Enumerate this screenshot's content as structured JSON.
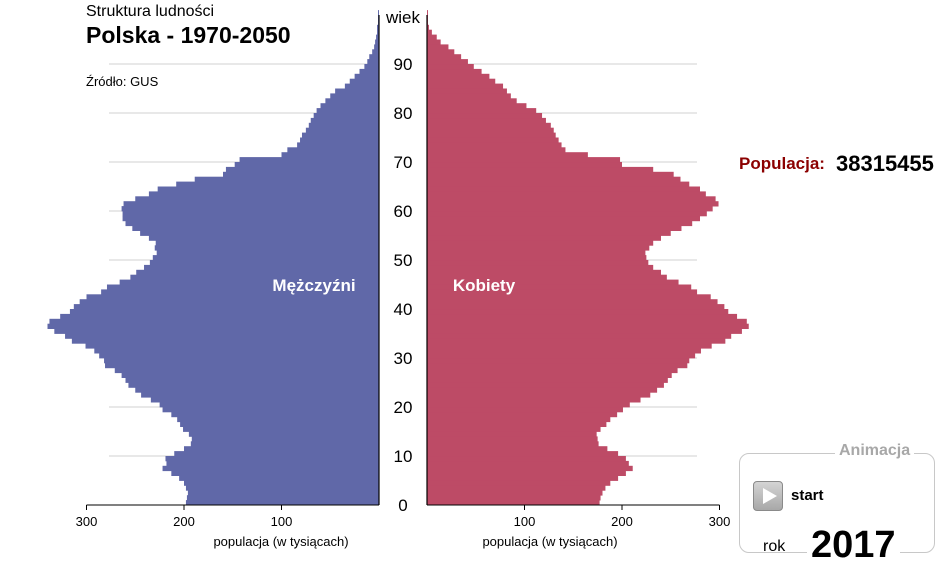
{
  "header": {
    "subtitle": "Struktura ludności",
    "title": "Polska - 1970-2050",
    "source": "Źródło: GUS"
  },
  "population": {
    "label": "Populacja:",
    "value": "38315455"
  },
  "animation": {
    "legend": "Animacja",
    "start_label": "start",
    "year_label": "rok",
    "year": "2017"
  },
  "colors": {
    "men": "#6068a8",
    "women": "#bd4b66",
    "grid": "#d0d0d0",
    "accent_dark_red": "#8b0000"
  },
  "chart_data": {
    "type": "bar",
    "orientation": "population-pyramid",
    "age_axis_label": "wiek",
    "age_ticks": [
      0,
      10,
      20,
      30,
      40,
      50,
      60,
      70,
      80,
      90
    ],
    "age_range": [
      0,
      100
    ],
    "x_range": [
      0,
      300
    ],
    "x_ticks_left": [
      300,
      200,
      100
    ],
    "x_ticks_right": [
      100,
      200,
      300
    ],
    "xlabel_left": "populacja (w tysiącach)",
    "xlabel_right": "populacja (w tysiącach)",
    "series": [
      {
        "name": "Mężczyźni",
        "values": [
          198,
          197,
          196,
          198,
          200,
          205,
          213,
          222,
          218,
          219,
          210,
          200,
          193,
          192,
          195,
          201,
          204,
          207,
          213,
          222,
          225,
          234,
          244,
          250,
          257,
          260,
          264,
          271,
          281,
          282,
          287,
          292,
          301,
          315,
          322,
          333,
          340,
          338,
          327,
          317,
          313,
          307,
          300,
          285,
          279,
          266,
          255,
          249,
          241,
          235,
          232,
          228,
          230,
          229,
          236,
          245,
          253,
          260,
          263,
          263,
          264,
          262,
          250,
          236,
          227,
          208,
          189,
          160,
          157,
          148,
          143,
          100,
          94,
          84,
          81,
          79,
          75,
          72,
          70,
          67,
          64,
          60,
          55,
          50,
          45,
          35,
          30,
          25,
          20,
          15,
          12,
          10,
          7,
          5,
          4,
          3,
          2,
          2,
          1,
          1,
          1
        ]
      },
      {
        "name": "Kobiety",
        "values": [
          177,
          178,
          180,
          183,
          188,
          196,
          204,
          211,
          207,
          204,
          196,
          185,
          176,
          175,
          174,
          178,
          184,
          188,
          195,
          201,
          208,
          219,
          229,
          236,
          243,
          247,
          251,
          257,
          267,
          269,
          275,
          281,
          292,
          306,
          312,
          323,
          330,
          328,
          318,
          309,
          305,
          298,
          291,
          277,
          271,
          258,
          246,
          240,
          232,
          227,
          225,
          224,
          228,
          232,
          240,
          250,
          261,
          272,
          280,
          287,
          293,
          299,
          296,
          286,
          280,
          269,
          260,
          253,
          232,
          200,
          198,
          165,
          142,
          138,
          135,
          132,
          130,
          127,
          122,
          118,
          112,
          102,
          92,
          86,
          82,
          78,
          70,
          64,
          56,
          48,
          42,
          35,
          28,
          22,
          14,
          10,
          5,
          2,
          1,
          1,
          1
        ]
      }
    ]
  }
}
